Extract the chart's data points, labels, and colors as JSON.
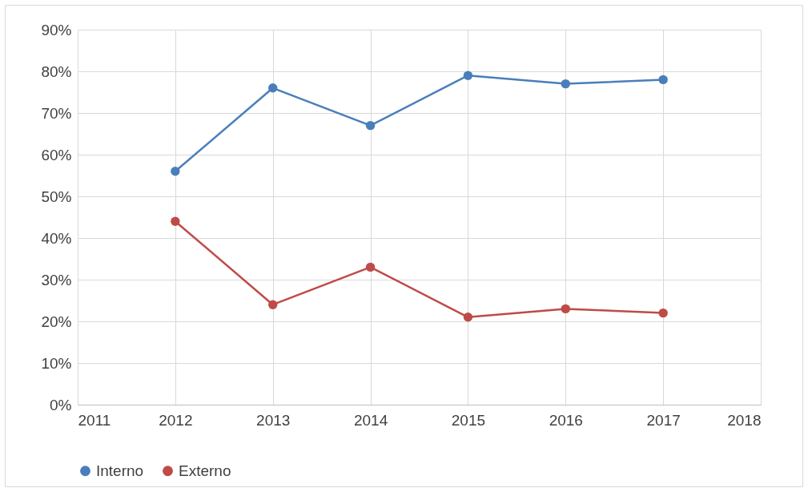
{
  "chart_data": {
    "type": "line",
    "x": [
      2012,
      2013,
      2014,
      2015,
      2016,
      2017
    ],
    "series": [
      {
        "name": "Interno",
        "color": "#4a7ebb",
        "values": [
          56,
          76,
          67,
          79,
          77,
          78
        ]
      },
      {
        "name": "Externo",
        "color": "#be4b48",
        "values": [
          44,
          24,
          33,
          21,
          23,
          22
        ]
      }
    ],
    "xlim": [
      2011,
      2018
    ],
    "xticks": [
      2011,
      2012,
      2013,
      2014,
      2015,
      2016,
      2017,
      2018
    ],
    "ylim": [
      0,
      90
    ],
    "yticks": [
      {
        "value": 0,
        "label": "0%"
      },
      {
        "value": 10,
        "label": "10%"
      },
      {
        "value": 20,
        "label": "20%"
      },
      {
        "value": 30,
        "label": "30%"
      },
      {
        "value": 40,
        "label": "40%"
      },
      {
        "value": 50,
        "label": "50%"
      },
      {
        "value": 60,
        "label": "60%"
      },
      {
        "value": 70,
        "label": "70%"
      },
      {
        "value": 80,
        "label": "80%"
      },
      {
        "value": 90,
        "label": "90%"
      }
    ],
    "grid": true,
    "legend": "bottom",
    "marker": "circle",
    "line_style": "solid"
  }
}
